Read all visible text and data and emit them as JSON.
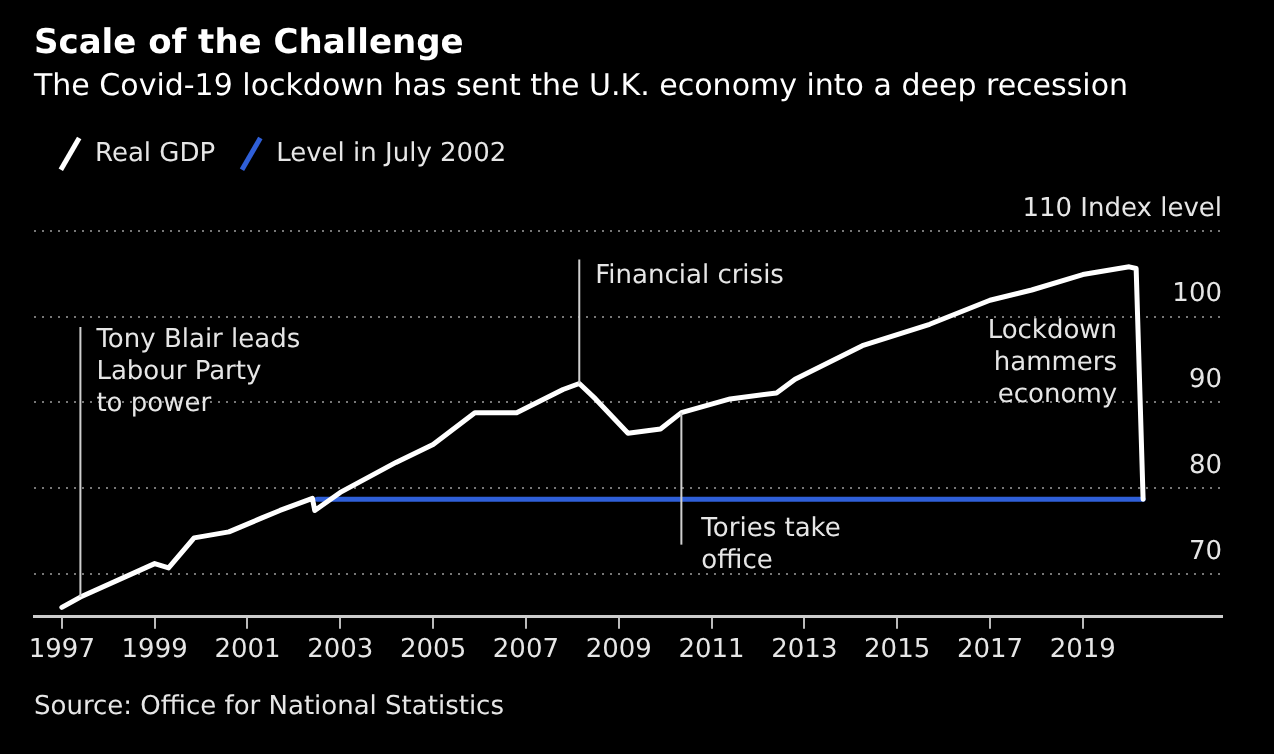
{
  "chart_data": {
    "type": "line",
    "title": "Scale of the Challenge",
    "subtitle": "The Covid-19 lockdown has sent the U.K. economy into a deep recession",
    "series": [
      {
        "name": "Real GDP",
        "color": "#ffffff",
        "x": [
          1997.0,
          1997.4,
          1999.0,
          1999.3,
          1999.85,
          2000.6,
          2001.3,
          2001.7,
          2002.4,
          2002.45,
          2003.0,
          2004.2,
          2005.0,
          2005.9,
          2006.8,
          2007.8,
          2008.15,
          2008.5,
          2009.2,
          2009.9,
          2010.35,
          2011.4,
          2012.4,
          2012.8,
          2014.25,
          2015.7,
          2017.0,
          2017.9,
          2019.0,
          2020.0,
          2020.15,
          2020.3
        ],
        "values": [
          66.1,
          67.3,
          71.2,
          70.7,
          74.2,
          74.9,
          76.5,
          77.4,
          78.8,
          77.4,
          79.5,
          83.0,
          85.1,
          88.8,
          88.8,
          91.5,
          92.2,
          90.4,
          86.4,
          86.9,
          88.8,
          90.4,
          91.1,
          92.7,
          96.6,
          99.1,
          101.9,
          103.1,
          104.9,
          105.8,
          105.6,
          78.7
        ]
      },
      {
        "name": "Level in July 2002",
        "color": "#2f5fd8",
        "x": [
          2002.5,
          2020.3
        ],
        "values": [
          78.7,
          78.7
        ]
      }
    ],
    "xlim": [
      1996.4,
      2022
    ],
    "xticks": [
      1997,
      1999,
      2001,
      2003,
      2005,
      2007,
      2009,
      2011,
      2013,
      2015,
      2017,
      2019
    ],
    "ylim": [
      65,
      110
    ],
    "yticks": [
      70,
      80,
      90,
      100,
      {
        "value": 110,
        "label": "110 Index level"
      }
    ],
    "grid": "y",
    "legend": "top left",
    "marker": "none",
    "line_style": "solid",
    "annotations": [
      {
        "text": "Tony Blair leads\nLabour Party\nto power",
        "x": 1997.4,
        "y": 67.3
      },
      {
        "text": "Financial crisis",
        "x": 2008.15,
        "y": 92.2
      },
      {
        "text": "Tories take\noffice",
        "x": 2010.35,
        "y": 88.8
      },
      {
        "text": "Lockdown\nhammers\neconomy",
        "x": 2020.3,
        "y": 90
      },
      "Source: Office for National Statistics"
    ]
  }
}
